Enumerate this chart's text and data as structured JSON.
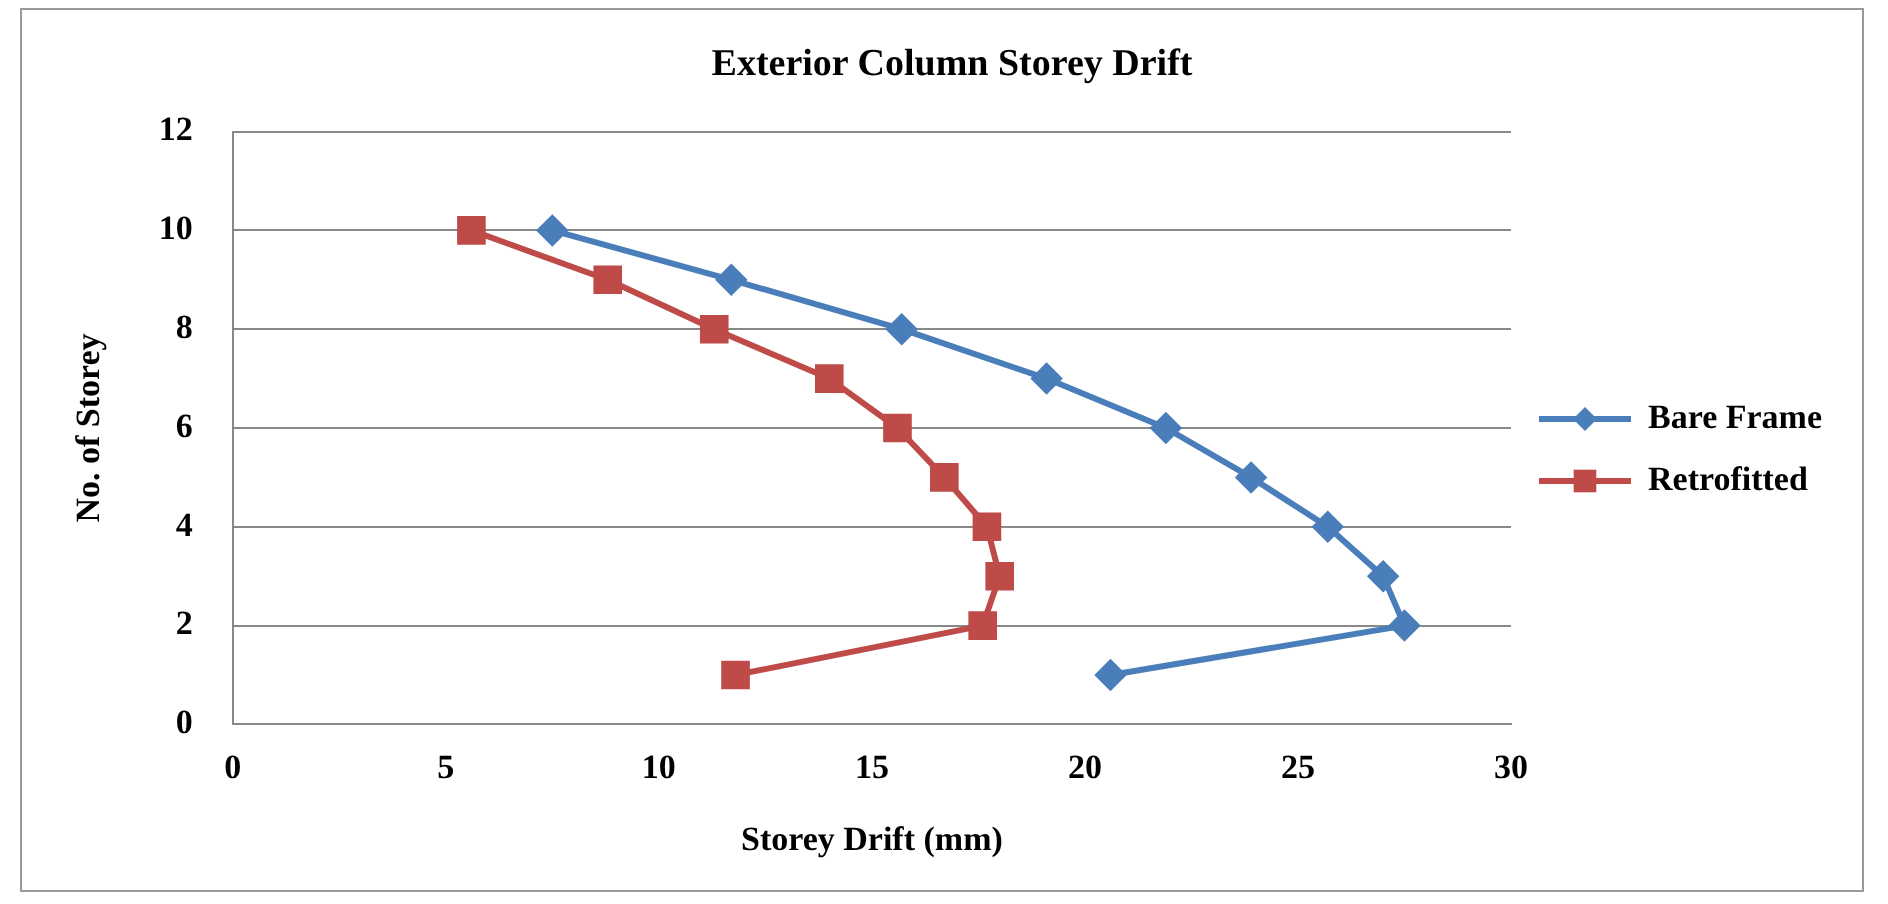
{
  "chart_data": {
    "type": "line",
    "title": "Exterior Column Storey Drift",
    "xlabel": "Storey Drift (mm)",
    "ylabel": "No. of Storey",
    "xlim": [
      0,
      30
    ],
    "xticks": [
      0,
      5,
      10,
      15,
      20,
      25,
      30
    ],
    "ylim": [
      0,
      12
    ],
    "yticks": [
      0,
      2,
      4,
      6,
      8,
      10,
      12
    ],
    "grid": "y",
    "legend": "right",
    "line_style": "solid",
    "series": [
      {
        "name": "Bare Frame",
        "color": "#4a7ebb",
        "marker": "diamond",
        "x": [
          7.5,
          11.7,
          15.7,
          19.1,
          21.9,
          23.9,
          25.7,
          27.0,
          27.5,
          20.6
        ],
        "values": [
          10,
          9,
          8,
          7,
          6,
          5,
          4,
          3,
          2,
          1
        ]
      },
      {
        "name": "Retrofitted",
        "color": "#be4b48",
        "marker": "square",
        "x": [
          5.6,
          8.8,
          11.3,
          14.0,
          15.6,
          16.7,
          17.7,
          18.0,
          17.6,
          11.8
        ],
        "values": [
          10,
          9,
          8,
          7,
          6,
          5,
          4,
          3,
          2,
          1
        ]
      }
    ]
  }
}
